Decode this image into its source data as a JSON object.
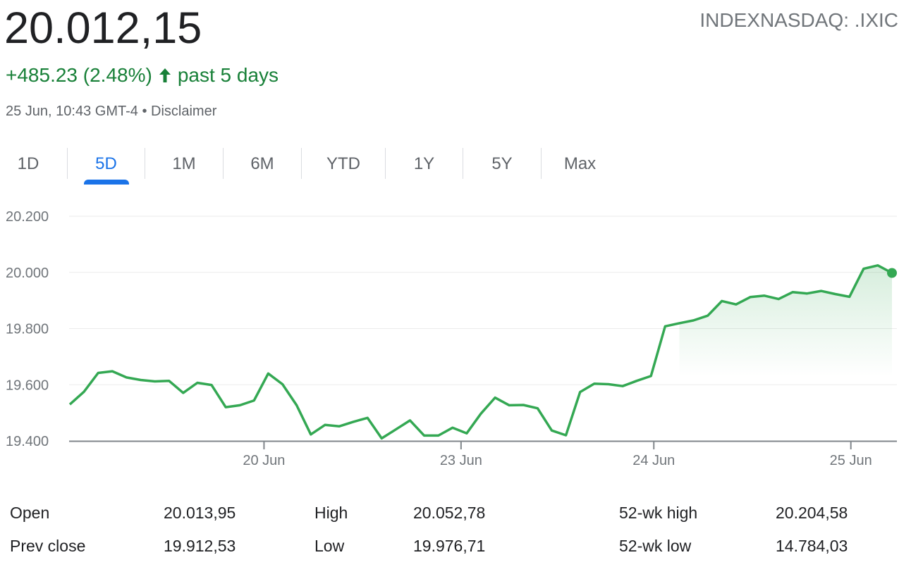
{
  "header": {
    "price": "20.012,15",
    "ticker": "INDEXNASDAQ: .IXIC",
    "change": "+485.23 (2.48%)",
    "change_icon": "arrow-up-icon",
    "change_period": "past 5 days",
    "timestamp": "25 Jun, 10:43 GMT-4",
    "separator": "•",
    "disclaimer": "Disclaimer"
  },
  "tabs": [
    {
      "label": "1D",
      "active": false
    },
    {
      "label": "5D",
      "active": true
    },
    {
      "label": "1M",
      "active": false
    },
    {
      "label": "6M",
      "active": false
    },
    {
      "label": "YTD",
      "active": false
    },
    {
      "label": "1Y",
      "active": false
    },
    {
      "label": "5Y",
      "active": false
    },
    {
      "label": "Max",
      "active": false
    }
  ],
  "colors": {
    "up": "#188038",
    "line": "#34a853",
    "accent": "#1a73e8"
  },
  "chart_data": {
    "type": "line",
    "title": "",
    "xlabel": "",
    "ylabel": "",
    "ylim": [
      19400,
      20200
    ],
    "yticks": [
      19400,
      19600,
      19800,
      20000,
      20200
    ],
    "ytick_labels": [
      "19.400",
      "19.600",
      "19.800",
      "20.000",
      "20.200"
    ],
    "xticks": [
      {
        "pos": 13.7,
        "label": "20 Jun"
      },
      {
        "pos": 27.6,
        "label": "23 Jun"
      },
      {
        "pos": 41.2,
        "label": "24 Jun"
      },
      {
        "pos": 55.1,
        "label": "25 Jun"
      }
    ],
    "grid": true,
    "fill_from_index": 43,
    "series": [
      {
        "name": ".IXIC",
        "values": [
          19530,
          19575,
          19642,
          19648,
          19626,
          19617,
          19612,
          19614,
          19571,
          19607,
          19599,
          19520,
          19527,
          19544,
          19640,
          19602,
          19527,
          19423,
          19457,
          19452,
          19468,
          19482,
          19409,
          19441,
          19473,
          19419,
          19419,
          19447,
          19427,
          19497,
          19554,
          19527,
          19528,
          19516,
          19437,
          19420,
          19574,
          19604,
          19602,
          19595,
          19614,
          19631,
          19808,
          19819,
          19829,
          19846,
          19898,
          19886,
          19912,
          19917,
          19905,
          19930,
          19925,
          19934,
          19923,
          19913,
          20013,
          20025,
          19998
        ]
      }
    ]
  },
  "stats": [
    {
      "label": "Open",
      "value": "20.013,95"
    },
    {
      "label": "Prev close",
      "value": "19.912,53"
    },
    {
      "label": "High",
      "value": "20.052,78"
    },
    {
      "label": "Low",
      "value": "19.976,71"
    },
    {
      "label": "52-wk high",
      "value": "20.204,58"
    },
    {
      "label": "52-wk low",
      "value": "14.784,03"
    }
  ]
}
